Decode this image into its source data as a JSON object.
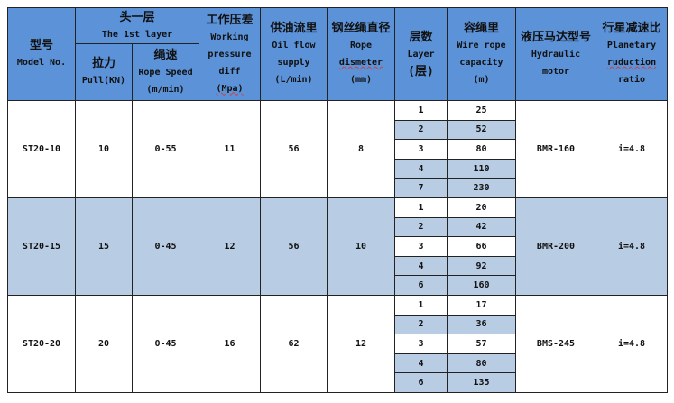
{
  "header": {
    "model": {
      "cn": "型号",
      "en": "Model No."
    },
    "first_layer": {
      "cn": "头一层",
      "en": "The 1st layer"
    },
    "pull": {
      "cn": "拉力",
      "en": "Pull(KN)"
    },
    "rope_speed": {
      "cn": "绳速",
      "en1": "Rope Speed",
      "en2": "(m/min)"
    },
    "pressure": {
      "cn": "工作压差",
      "en1": "Working",
      "en2": "pressure",
      "en3": "diff",
      "en4": "(Mpa)"
    },
    "oil_flow": {
      "cn": "供油流里",
      "en1": "Oil flow",
      "en2": "supply",
      "en3": "(L/min)"
    },
    "rope_dia": {
      "cn": "钢丝绳直径",
      "en1": "Rope",
      "en2": "dismeter",
      "en3": "(mm)"
    },
    "layer": {
      "cn": "层数",
      "en1": "Layer",
      "en2": "(层)"
    },
    "capacity": {
      "cn": "容绳里",
      "en1": "Wire rope",
      "en2": "capacity",
      "en3": "(m)"
    },
    "motor": {
      "cn": "液压马达型号",
      "en1": "Hydraulic",
      "en2": "motor"
    },
    "ratio": {
      "cn": "行星减速比",
      "en1": "Planetary",
      "en2": "ruduction",
      "en3": "ratio"
    }
  },
  "rows": [
    {
      "model": "ST20-10",
      "pull": "10",
      "speed": "0-55",
      "pressure": "11",
      "flow": "56",
      "dia": "8",
      "motor": "BMR-160",
      "ratio": "i=4.8",
      "layers": [
        {
          "l": "1",
          "c": "25"
        },
        {
          "l": "2",
          "c": "52"
        },
        {
          "l": "3",
          "c": "80"
        },
        {
          "l": "4",
          "c": "110"
        },
        {
          "l": "7",
          "c": "230"
        }
      ]
    },
    {
      "model": "ST20-15",
      "pull": "15",
      "speed": "0-45",
      "pressure": "12",
      "flow": "56",
      "dia": "10",
      "motor": "BMR-200",
      "ratio": "i=4.8",
      "layers": [
        {
          "l": "1",
          "c": "20"
        },
        {
          "l": "2",
          "c": "42"
        },
        {
          "l": "3",
          "c": "66"
        },
        {
          "l": "4",
          "c": "92"
        },
        {
          "l": "6",
          "c": "160"
        }
      ]
    },
    {
      "model": "ST20-20",
      "pull": "20",
      "speed": "0-45",
      "pressure": "16",
      "flow": "62",
      "dia": "12",
      "motor": "BMS-245",
      "ratio": "i=4.8",
      "layers": [
        {
          "l": "1",
          "c": "17"
        },
        {
          "l": "2",
          "c": "36"
        },
        {
          "l": "3",
          "c": "57"
        },
        {
          "l": "4",
          "c": "80"
        },
        {
          "l": "6",
          "c": "135"
        }
      ]
    }
  ],
  "colors": {
    "header": "#5b92d8",
    "band": "#b8cce4"
  }
}
